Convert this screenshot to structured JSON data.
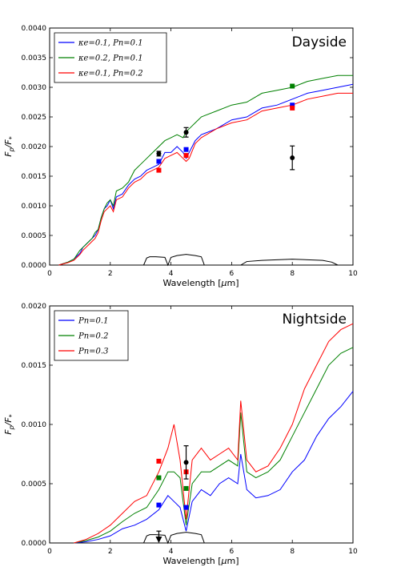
{
  "chart_data": [
    {
      "type": "line",
      "title": "Dayside",
      "xlabel": "Wavelength [μm]",
      "ylabel": "F_p/F_*",
      "xlim": [
        0,
        10
      ],
      "ylim": [
        0,
        0.004
      ],
      "x_ticks": [
        "0",
        "2",
        "4",
        "6",
        "8",
        "10"
      ],
      "y_ticks": [
        "0.0000",
        "0.0005",
        "0.0010",
        "0.0015",
        "0.0020",
        "0.0025",
        "0.0030",
        "0.0035",
        "0.0040"
      ],
      "legend_position": "top-left",
      "series": [
        {
          "name": "κe=0.1, Pn=0.1",
          "color": "#0000ff",
          "x": [
            0.3,
            0.6,
            0.8,
            1.0,
            1.1,
            1.2,
            1.3,
            1.4,
            1.5,
            1.6,
            1.7,
            1.8,
            1.9,
            2.0,
            2.1,
            2.2,
            2.4,
            2.6,
            2.8,
            3.0,
            3.2,
            3.4,
            3.6,
            3.8,
            4.0,
            4.2,
            4.4,
            4.5,
            4.6,
            4.8,
            5.0,
            5.5,
            6.0,
            6.5,
            7.0,
            7.5,
            8.0,
            8.5,
            9.0,
            9.5,
            10.0
          ],
          "y": [
            0.0,
            5e-05,
            0.0001,
            0.0002,
            0.0003,
            0.00035,
            0.0004,
            0.00045,
            0.0005,
            0.0006,
            0.0008,
            0.00095,
            0.001,
            0.0011,
            0.00095,
            0.00115,
            0.0012,
            0.00135,
            0.00145,
            0.0015,
            0.0016,
            0.00165,
            0.0017,
            0.0019,
            0.0019,
            0.002,
            0.0019,
            0.0018,
            0.0019,
            0.0021,
            0.0022,
            0.0023,
            0.00245,
            0.0025,
            0.00265,
            0.0027,
            0.0028,
            0.0029,
            0.00295,
            0.003,
            0.00305
          ]
        },
        {
          "name": "κe=0.2, Pn=0.1",
          "color": "#008000",
          "x": [
            0.3,
            0.6,
            0.8,
            1.0,
            1.1,
            1.2,
            1.3,
            1.4,
            1.5,
            1.6,
            1.7,
            1.8,
            1.9,
            2.0,
            2.1,
            2.2,
            2.4,
            2.6,
            2.8,
            3.0,
            3.2,
            3.4,
            3.6,
            3.8,
            4.0,
            4.2,
            4.4,
            4.5,
            4.6,
            4.8,
            5.0,
            5.5,
            6.0,
            6.5,
            7.0,
            7.5,
            8.0,
            8.5,
            9.0,
            9.5,
            10.0
          ],
          "y": [
            0.0,
            5e-05,
            0.0001,
            0.00025,
            0.0003,
            0.00035,
            0.0004,
            0.00045,
            0.00055,
            0.0006,
            0.0008,
            0.00095,
            0.00105,
            0.0011,
            0.001,
            0.00125,
            0.0013,
            0.0014,
            0.0016,
            0.0017,
            0.0018,
            0.0019,
            0.002,
            0.0021,
            0.00215,
            0.0022,
            0.00215,
            0.00225,
            0.0023,
            0.0024,
            0.0025,
            0.0026,
            0.0027,
            0.00275,
            0.0029,
            0.00295,
            0.003,
            0.0031,
            0.00315,
            0.0032,
            0.0032
          ]
        },
        {
          "name": "κe=0.1, Pn=0.2",
          "color": "#ff0000",
          "x": [
            0.3,
            0.6,
            0.8,
            1.0,
            1.1,
            1.2,
            1.3,
            1.4,
            1.5,
            1.6,
            1.7,
            1.8,
            1.9,
            2.0,
            2.1,
            2.2,
            2.4,
            2.6,
            2.8,
            3.0,
            3.2,
            3.4,
            3.6,
            3.8,
            4.0,
            4.2,
            4.4,
            4.5,
            4.6,
            4.8,
            5.0,
            5.5,
            6.0,
            6.5,
            7.0,
            7.5,
            8.0,
            8.5,
            9.0,
            9.5,
            10.0
          ],
          "y": [
            0.0,
            4e-05,
            8e-05,
            0.00018,
            0.00025,
            0.0003,
            0.00035,
            0.0004,
            0.00045,
            0.00055,
            0.00075,
            0.0009,
            0.00095,
            0.001,
            0.0009,
            0.0011,
            0.00115,
            0.0013,
            0.0014,
            0.00145,
            0.00155,
            0.0016,
            0.00165,
            0.0018,
            0.00185,
            0.0019,
            0.0018,
            0.00175,
            0.0018,
            0.00205,
            0.00215,
            0.0023,
            0.0024,
            0.00245,
            0.0026,
            0.00265,
            0.0027,
            0.0028,
            0.00285,
            0.0029,
            0.0029
          ]
        }
      ],
      "model_points": [
        {
          "x": 3.6,
          "y": 0.00175,
          "color": "#0000ff"
        },
        {
          "x": 4.5,
          "y": 0.00195,
          "color": "#0000ff"
        },
        {
          "x": 8.0,
          "y": 0.0027,
          "color": "#0000ff"
        },
        {
          "x": 3.6,
          "y": 0.0016,
          "color": "#ff0000"
        },
        {
          "x": 4.5,
          "y": 0.00185,
          "color": "#ff0000"
        },
        {
          "x": 8.0,
          "y": 0.00265,
          "color": "#ff0000"
        },
        {
          "x": 8.0,
          "y": 0.00302,
          "color": "#008000"
        }
      ],
      "observations": [
        {
          "x": 3.6,
          "y": 0.00188,
          "err": 4e-05
        },
        {
          "x": 4.5,
          "y": 0.00224,
          "err": 8e-05
        },
        {
          "x": 8.0,
          "y": 0.00181,
          "err": 0.0002
        }
      ],
      "filter_curves": [
        {
          "x": [
            3.1,
            3.2,
            3.3,
            3.5,
            3.8,
            3.9,
            4.0,
            4.2,
            4.5,
            4.8,
            5.0,
            5.1
          ],
          "y": [
            0.0,
            0.00012,
            0.00014,
            0.00014,
            0.00013,
            0.0,
            0.00013,
            0.00016,
            0.00018,
            0.00016,
            0.00014,
            0.0
          ]
        },
        {
          "x": [
            6.3,
            6.5,
            7.0,
            7.5,
            8.0,
            8.5,
            9.0,
            9.3,
            9.5
          ],
          "y": [
            0.0,
            6e-05,
            8e-05,
            9e-05,
            0.0001,
            9e-05,
            8e-05,
            5e-05,
            0.0
          ]
        }
      ]
    },
    {
      "type": "line",
      "title": "Nightside",
      "xlabel": "Wavelength [μm]",
      "ylabel": "F_p/F_*",
      "xlim": [
        0,
        10
      ],
      "ylim": [
        0,
        0.002
      ],
      "x_ticks": [
        "0",
        "2",
        "4",
        "6",
        "8",
        "10"
      ],
      "y_ticks": [
        "0.0000",
        "0.0005",
        "0.0010",
        "0.0015",
        "0.0020"
      ],
      "legend_position": "top-left",
      "series": [
        {
          "name": "Pn=0.1",
          "color": "#0000ff",
          "x": [
            0.8,
            1.2,
            1.6,
            2.0,
            2.4,
            2.8,
            3.2,
            3.6,
            3.9,
            4.1,
            4.3,
            4.5,
            4.7,
            5.0,
            5.3,
            5.6,
            5.9,
            6.2,
            6.3,
            6.5,
            6.8,
            7.2,
            7.6,
            8.0,
            8.4,
            8.8,
            9.2,
            9.6,
            10.0
          ],
          "y": [
            0.0,
            1e-05,
            3e-05,
            6e-05,
            0.00012,
            0.00015,
            0.0002,
            0.00028,
            0.0004,
            0.00035,
            0.0003,
            0.0001,
            0.00035,
            0.00045,
            0.0004,
            0.0005,
            0.00055,
            0.0005,
            0.00075,
            0.00045,
            0.00038,
            0.0004,
            0.00045,
            0.0006,
            0.0007,
            0.0009,
            0.00105,
            0.00115,
            0.00128
          ]
        },
        {
          "name": "Pn=0.2",
          "color": "#008000",
          "x": [
            0.8,
            1.2,
            1.6,
            2.0,
            2.4,
            2.8,
            3.2,
            3.6,
            3.9,
            4.1,
            4.3,
            4.5,
            4.7,
            5.0,
            5.3,
            5.6,
            5.9,
            6.2,
            6.3,
            6.5,
            6.8,
            7.2,
            7.6,
            8.0,
            8.4,
            8.8,
            9.2,
            9.6,
            10.0
          ],
          "y": [
            0.0,
            2e-05,
            5e-05,
            0.0001,
            0.00018,
            0.00025,
            0.0003,
            0.00045,
            0.0006,
            0.0006,
            0.00055,
            0.00015,
            0.0005,
            0.0006,
            0.0006,
            0.00065,
            0.0007,
            0.00065,
            0.0011,
            0.0006,
            0.00055,
            0.0006,
            0.0007,
            0.0009,
            0.0011,
            0.0013,
            0.0015,
            0.0016,
            0.00165
          ]
        },
        {
          "name": "Pn=0.3",
          "color": "#ff0000",
          "x": [
            0.8,
            1.2,
            1.6,
            2.0,
            2.4,
            2.8,
            3.2,
            3.6,
            3.9,
            4.1,
            4.3,
            4.5,
            4.7,
            5.0,
            5.3,
            5.6,
            5.9,
            6.2,
            6.3,
            6.5,
            6.8,
            7.2,
            7.6,
            8.0,
            8.4,
            8.8,
            9.2,
            9.6,
            10.0
          ],
          "y": [
            0.0,
            3e-05,
            8e-05,
            0.00015,
            0.00025,
            0.00035,
            0.0004,
            0.0006,
            0.0008,
            0.001,
            0.0007,
            0.0002,
            0.0007,
            0.0008,
            0.0007,
            0.00075,
            0.0008,
            0.0007,
            0.0012,
            0.0007,
            0.0006,
            0.00065,
            0.0008,
            0.001,
            0.0013,
            0.0015,
            0.0017,
            0.0018,
            0.00185
          ]
        }
      ],
      "model_points": [
        {
          "x": 3.6,
          "y": 0.00032,
          "color": "#0000ff"
        },
        {
          "x": 4.5,
          "y": 0.0003,
          "color": "#0000ff"
        },
        {
          "x": 3.6,
          "y": 0.00055,
          "color": "#008000"
        },
        {
          "x": 4.5,
          "y": 0.00046,
          "color": "#008000"
        },
        {
          "x": 3.6,
          "y": 0.00069,
          "color": "#ff0000"
        },
        {
          "x": 4.5,
          "y": 0.0006,
          "color": "#ff0000"
        }
      ],
      "observations": [
        {
          "x": 4.5,
          "y": 0.00068,
          "err": 0.00014
        }
      ],
      "upper_limits": [
        {
          "x": 3.6,
          "y": 0.0001
        }
      ],
      "filter_curves": [
        {
          "x": [
            3.1,
            3.2,
            3.3,
            3.5,
            3.8,
            3.9,
            4.0,
            4.2,
            4.5,
            4.8,
            5.0,
            5.1
          ],
          "y": [
            0.0,
            6e-05,
            7e-05,
            7e-05,
            6.5e-05,
            0.0,
            6.5e-05,
            8e-05,
            9e-05,
            8e-05,
            7e-05,
            0.0
          ]
        }
      ]
    }
  ]
}
